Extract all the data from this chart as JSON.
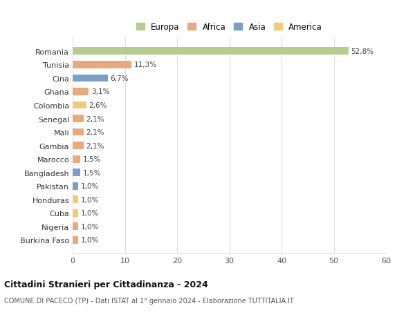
{
  "categories": [
    "Burkina Faso",
    "Nigeria",
    "Cuba",
    "Honduras",
    "Pakistan",
    "Bangladesh",
    "Marocco",
    "Gambia",
    "Mali",
    "Senegal",
    "Colombia",
    "Ghana",
    "Cina",
    "Tunisia",
    "Romania"
  ],
  "values": [
    1.0,
    1.0,
    1.0,
    1.0,
    1.0,
    1.5,
    1.5,
    2.1,
    2.1,
    2.1,
    2.6,
    3.1,
    6.7,
    11.3,
    52.8
  ],
  "labels": [
    "1,0%",
    "1,0%",
    "1,0%",
    "1,0%",
    "1,0%",
    "1,5%",
    "1,5%",
    "2,1%",
    "2,1%",
    "2,1%",
    "2,6%",
    "3,1%",
    "6,7%",
    "11,3%",
    "52,8%"
  ],
  "colors": [
    "#e8a97e",
    "#e8a97e",
    "#f0c97a",
    "#f0c97a",
    "#7b9fc7",
    "#7b9fc7",
    "#e8a97e",
    "#e8a97e",
    "#e8a97e",
    "#e8a97e",
    "#f0c97a",
    "#e8a97e",
    "#7b9fc7",
    "#e8a97e",
    "#b5cc8e"
  ],
  "legend_labels": [
    "Europa",
    "Africa",
    "Asia",
    "America"
  ],
  "legend_colors": [
    "#b5cc8e",
    "#e8a97e",
    "#7b9fc7",
    "#f0c97a"
  ],
  "title": "Cittadini Stranieri per Cittadinanza - 2024",
  "subtitle": "COMUNE DI PACECO (TP) - Dati ISTAT al 1° gennaio 2024 - Elaborazione TUTTITALIA.IT",
  "xlim": [
    0,
    60
  ],
  "xticks": [
    0,
    10,
    20,
    30,
    40,
    50,
    60
  ],
  "bg_color": "#ffffff",
  "grid_color": "#dddddd",
  "bar_height": 0.55
}
